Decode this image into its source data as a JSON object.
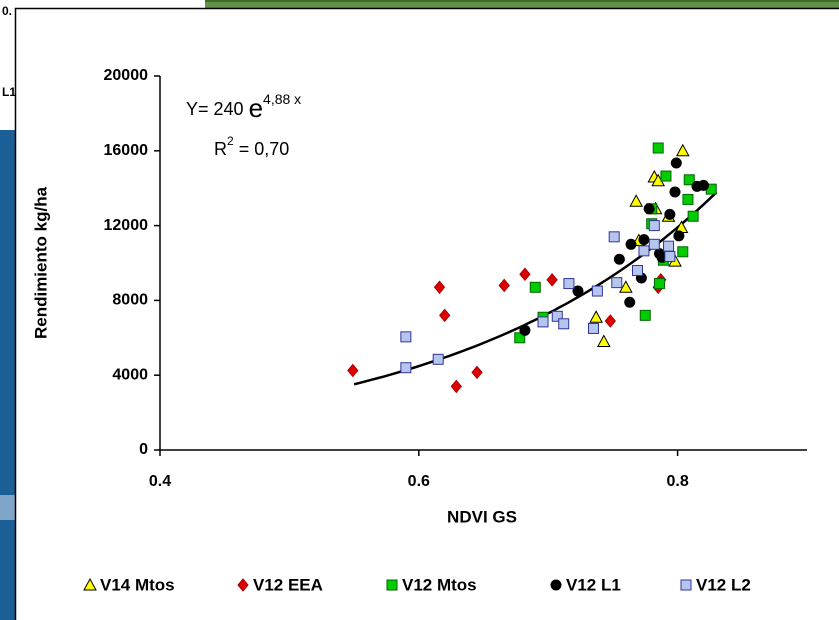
{
  "background_text": [
    "0.",
    "L1"
  ],
  "chart_data": {
    "type": "scatter",
    "x_label": "NDVI GS",
    "y_label": "Rendimiento kg/ha",
    "xlim": [
      0.4,
      0.9
    ],
    "xticks": [
      0.4,
      0.6,
      0.8
    ],
    "ylim": [
      0,
      20000
    ],
    "yticks": [
      0,
      4000,
      8000,
      12000,
      16000,
      20000
    ],
    "equation": {
      "lhs": "Y= 240 ",
      "base": "e",
      "exponent": "4,88 x"
    },
    "r_squared": {
      "symbol": "R",
      "power": "2",
      "rest": " = 0,70"
    },
    "trendline": {
      "a": 240,
      "b": 4.88,
      "x_range": [
        0.55,
        0.83
      ],
      "color": "#000000"
    },
    "series": [
      {
        "name": "V14 Mtos",
        "marker": "triangle",
        "color": "#ffff00",
        "stroke": "#000000",
        "x": [
          0.804,
          0.782,
          0.785,
          0.768,
          0.783,
          0.793,
          0.803,
          0.77,
          0.798,
          0.76,
          0.737,
          0.743
        ],
        "values": [
          16000,
          14600,
          14400,
          13300,
          12900,
          12500,
          11900,
          11200,
          10100,
          8700,
          7100,
          5800
        ]
      },
      {
        "name": "V12 EEA",
        "marker": "diamond",
        "color": "#dd0000",
        "stroke": "#aa0000",
        "x": [
          0.549,
          0.616,
          0.62,
          0.629,
          0.645,
          0.666,
          0.682,
          0.703,
          0.748,
          0.787,
          0.785
        ],
        "values": [
          4250,
          8700,
          7200,
          3400,
          4150,
          8800,
          9400,
          9100,
          6900,
          9100,
          8700
        ]
      },
      {
        "name": "V12 Mtos",
        "marker": "square",
        "color": "#00cc00",
        "stroke": "#006600",
        "x": [
          0.678,
          0.69,
          0.696,
          0.785,
          0.791,
          0.809,
          0.826,
          0.808,
          0.78,
          0.78,
          0.812,
          0.804,
          0.786,
          0.775,
          0.789
        ],
        "values": [
          6000,
          8700,
          7100,
          16150,
          14650,
          14450,
          13950,
          13400,
          12900,
          12100,
          12500,
          10600,
          8900,
          7200,
          10150
        ]
      },
      {
        "name": "V12 L1",
        "marker": "circle",
        "color": "#000000",
        "stroke": "#000000",
        "x": [
          0.682,
          0.723,
          0.755,
          0.764,
          0.772,
          0.763,
          0.799,
          0.778,
          0.798,
          0.815,
          0.82,
          0.794,
          0.801,
          0.786,
          0.774,
          0.788
        ],
        "values": [
          6400,
          8500,
          10200,
          11000,
          9200,
          7900,
          15350,
          12900,
          13800,
          14100,
          14150,
          12600,
          11450,
          10500,
          11250,
          10300
        ]
      },
      {
        "name": "V12 L2",
        "marker": "square",
        "color": "#b4c6ee",
        "stroke": "#333399",
        "x": [
          0.59,
          0.59,
          0.615,
          0.696,
          0.707,
          0.712,
          0.716,
          0.738,
          0.751,
          0.753,
          0.769,
          0.774,
          0.782,
          0.782,
          0.793,
          0.794,
          0.735
        ],
        "values": [
          6050,
          4400,
          4850,
          6850,
          7150,
          6750,
          8900,
          8500,
          11400,
          8950,
          9600,
          10650,
          12000,
          11000,
          10900,
          10350,
          6500
        ]
      }
    ]
  }
}
